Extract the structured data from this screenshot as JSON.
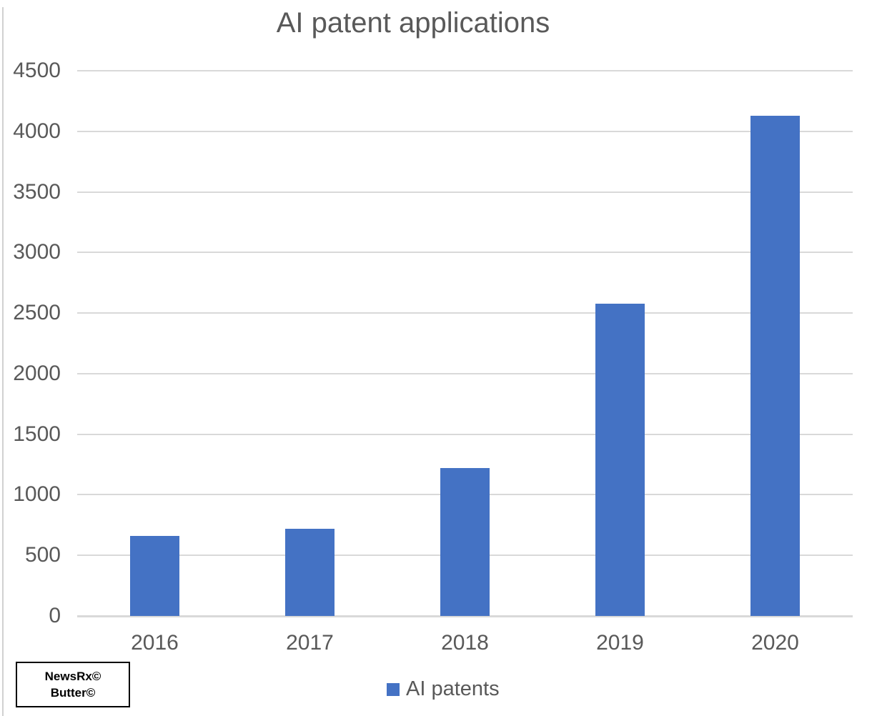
{
  "chart_data": {
    "type": "bar",
    "title": "AI patent applications",
    "categories": [
      "2016",
      "2017",
      "2018",
      "2019",
      "2020"
    ],
    "series": [
      {
        "name": "AI patents",
        "color": "#4472C4",
        "values": [
          660,
          720,
          1220,
          2580,
          4130
        ]
      }
    ],
    "xlabel": "",
    "ylabel": "",
    "ylim": [
      0,
      4500
    ],
    "yticks": [
      0,
      500,
      1000,
      1500,
      2000,
      2500,
      3000,
      3500,
      4000,
      4500
    ],
    "grid": true,
    "gridline_color": "#d9d9d9",
    "text_color": "#595959",
    "legend_position": "bottom"
  },
  "watermark": {
    "line1": "NewsRx©",
    "line2": "Butter©"
  }
}
